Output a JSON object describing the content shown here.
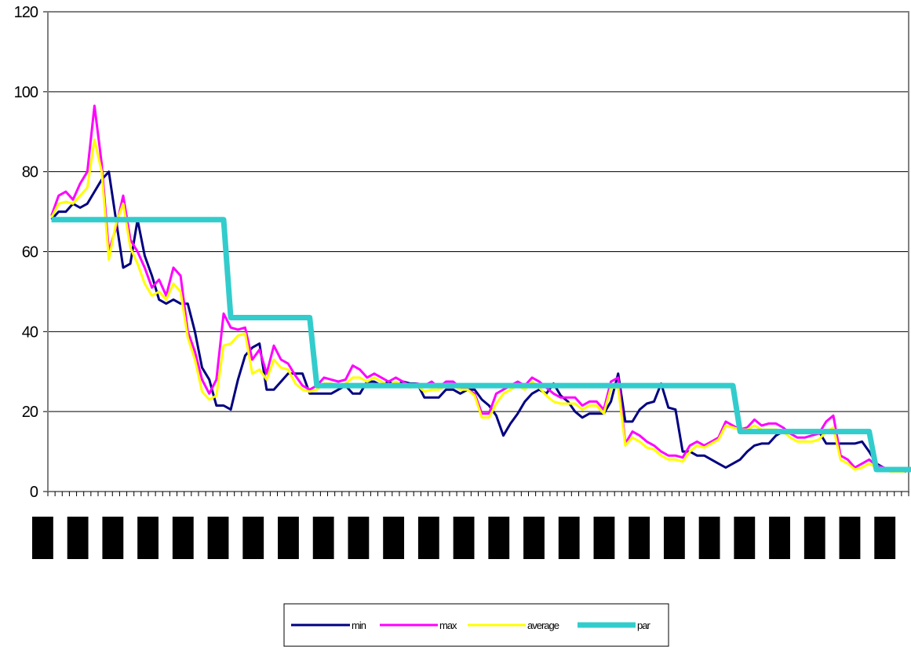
{
  "chart_data": {
    "type": "line",
    "title": "",
    "xlabel": "",
    "ylabel": "",
    "ylim": [
      0,
      120
    ],
    "yticks": [
      0,
      20,
      40,
      60,
      80,
      100,
      120
    ],
    "grid": true,
    "legend_position": "bottom",
    "x_count": 120,
    "x_labels_note": "redacted",
    "series": [
      {
        "name": "min",
        "color": "#000080",
        "values": [
          68,
          70,
          70,
          72,
          71,
          72,
          75,
          78,
          80,
          68,
          56,
          57,
          68,
          59,
          54,
          48,
          47,
          48,
          47,
          47,
          40,
          31,
          28,
          21.5,
          21.5,
          20.5,
          28,
          34,
          36,
          37,
          25.5,
          25.5,
          27.5,
          29.5,
          29.5,
          29.5,
          24.5,
          24.5,
          24.5,
          24.5,
          25.5,
          26.5,
          24.5,
          24.5,
          27.5,
          27.5,
          26.5,
          27.5,
          26.5,
          27.5,
          27,
          27,
          23.5,
          23.5,
          23.5,
          25.5,
          25.5,
          24.5,
          25.5,
          25.5,
          23,
          21.5,
          19,
          14,
          17,
          19.5,
          22.5,
          24.5,
          25.5,
          24.5,
          27,
          24,
          22.5,
          20,
          18.5,
          19.5,
          19.5,
          19.5,
          22.5,
          29.5,
          17.5,
          17.5,
          20.5,
          22,
          22.5,
          27,
          21,
          20.5,
          10,
          10,
          9,
          9,
          8,
          7,
          6,
          7,
          8,
          10,
          11.5,
          12,
          12,
          14,
          15,
          15,
          15,
          15,
          15,
          15,
          12,
          12,
          12,
          12,
          12,
          12.5,
          10,
          7,
          6,
          5,
          5,
          5,
          6,
          5.5,
          5,
          5
        ]
      },
      {
        "name": "max",
        "color": "#ff00ff",
        "values": [
          69,
          74,
          75,
          73,
          77,
          80,
          96.5,
          82,
          60,
          66,
          74,
          63,
          60,
          56,
          51,
          53,
          49,
          56,
          54,
          40,
          35,
          28,
          24.5,
          28,
          44.5,
          41,
          40.5,
          41,
          33,
          35.5,
          29.5,
          36.5,
          33,
          32,
          29,
          26.5,
          25.5,
          26.5,
          28.5,
          28,
          27.5,
          28,
          31.5,
          30.5,
          28.5,
          29.5,
          28.5,
          27.5,
          28.5,
          27.5,
          26.5,
          27,
          26.5,
          27.5,
          26,
          27.5,
          27.5,
          26,
          25.5,
          24.5,
          19.5,
          19.5,
          24.5,
          25.5,
          26.5,
          27.5,
          26.5,
          28.5,
          27.5,
          26,
          24.5,
          23.5,
          23.5,
          23.5,
          21.5,
          22.5,
          22.5,
          20.5,
          27.5,
          28.5,
          12,
          15,
          14,
          12.5,
          11.5,
          10,
          9,
          9,
          8.5,
          11.5,
          12.5,
          11.5,
          12.5,
          13.5,
          17.5,
          16.5,
          15.5,
          16,
          18,
          16.5,
          17,
          17,
          16,
          14.5,
          13.5,
          13.5,
          14,
          14.5,
          17.5,
          19,
          9,
          8,
          6,
          7,
          8,
          6.5,
          6,
          5.5,
          5,
          5
        ]
      },
      {
        "name": "average",
        "color": "#ffff00",
        "values": [
          68.5,
          72,
          72.5,
          72,
          74,
          76,
          88,
          80,
          58,
          67,
          72,
          61,
          57,
          52,
          49,
          50,
          48,
          52,
          50,
          38.5,
          33,
          25,
          23,
          24,
          36.5,
          37,
          39,
          39.5,
          29.5,
          30.5,
          28,
          33,
          31,
          30.5,
          27,
          25.5,
          25,
          25.5,
          27,
          27,
          26.5,
          27,
          28.5,
          28.5,
          27.5,
          28.5,
          27.5,
          26.5,
          27.5,
          26.5,
          26,
          26.5,
          25,
          25.5,
          25.5,
          26.5,
          26.5,
          25.5,
          25.5,
          24,
          18.5,
          18.5,
          22,
          24.5,
          25.5,
          26.5,
          25.5,
          27.5,
          26,
          24,
          22.5,
          22,
          22,
          22,
          20.5,
          21.5,
          21.5,
          19.5,
          26,
          26,
          11.5,
          13.5,
          12.5,
          11,
          10.5,
          9,
          8,
          8,
          7.5,
          10,
          11.5,
          11,
          12,
          13,
          16.5,
          16,
          15.5,
          15.5,
          16.5,
          15.5,
          15.5,
          15.5,
          15,
          13.5,
          12.5,
          12.5,
          12.5,
          13,
          15,
          16,
          8,
          7,
          5.5,
          6,
          7,
          6,
          5.5,
          5,
          5,
          5
        ]
      },
      {
        "name": "par",
        "color": "#33cccc",
        "values": [
          68,
          68,
          68,
          68,
          68,
          68,
          68,
          68,
          68,
          68,
          68,
          68,
          68,
          68,
          68,
          68,
          68,
          68,
          68,
          68,
          68,
          68,
          68,
          68,
          68,
          43.5,
          43.5,
          43.5,
          43.5,
          43.5,
          43.5,
          43.5,
          43.5,
          43.5,
          43.5,
          43.5,
          43.5,
          26.5,
          26.5,
          26.5,
          26.5,
          26.5,
          26.5,
          26.5,
          26.5,
          26.5,
          26.5,
          26.5,
          26.5,
          26.5,
          26.5,
          26.5,
          26.5,
          26.5,
          26.5,
          26.5,
          26.5,
          26.5,
          26.5,
          26.5,
          26.5,
          26.5,
          26.5,
          26.5,
          26.5,
          26.5,
          26.5,
          26.5,
          26.5,
          26.5,
          26.5,
          26.5,
          26.5,
          26.5,
          26.5,
          26.5,
          26.5,
          26.5,
          26.5,
          26.5,
          26.5,
          26.5,
          26.5,
          26.5,
          26.5,
          26.5,
          26.5,
          26.5,
          26.5,
          26.5,
          26.5,
          26.5,
          26.5,
          26.5,
          26.5,
          26.5,
          15,
          15,
          15,
          15,
          15,
          15,
          15,
          15,
          15,
          15,
          15,
          15,
          15,
          15,
          15,
          15,
          15,
          15,
          15,
          5.5,
          5.5,
          5.5,
          5.5,
          5.5,
          5.5
        ]
      }
    ]
  },
  "legend": {
    "items": [
      {
        "label": "min",
        "color": "#000080"
      },
      {
        "label": "max",
        "color": "#ff00ff"
      },
      {
        "label": "average",
        "color": "#ffff00"
      },
      {
        "label": "par",
        "color": "#33cccc"
      }
    ]
  }
}
